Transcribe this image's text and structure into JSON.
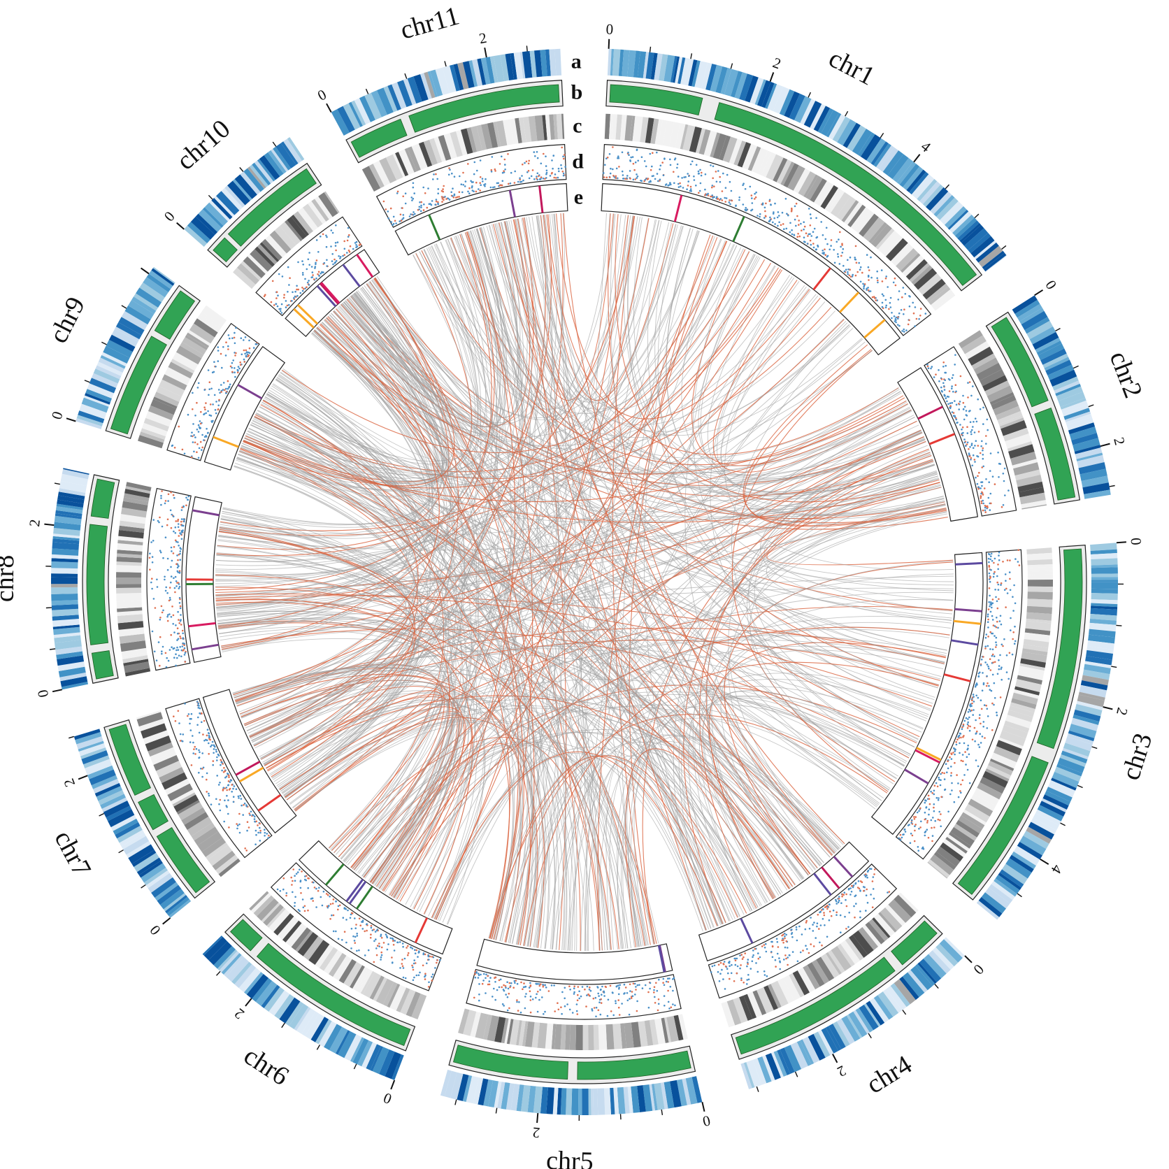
{
  "figure": {
    "track_letters": [
      "a",
      "b",
      "c",
      "d",
      "e"
    ],
    "chromosomes": [
      {
        "id": "chr1",
        "label": "chr1",
        "ticks": [
          "0",
          "2",
          "4"
        ],
        "size": 5.6
      },
      {
        "id": "chr2",
        "label": "chr2",
        "ticks": [
          "0",
          "2"
        ],
        "size": 2.6
      },
      {
        "id": "chr3",
        "label": "chr3",
        "ticks": [
          "0",
          "2",
          "4"
        ],
        "size": 4.9
      },
      {
        "id": "chr4",
        "label": "chr4",
        "ticks": [
          "0",
          "2"
        ],
        "size": 3.1
      },
      {
        "id": "chr5",
        "label": "chr5",
        "ticks": [
          "0",
          "2"
        ],
        "size": 3.2
      },
      {
        "id": "chr6",
        "label": "chr6",
        "ticks": [
          "0",
          "2"
        ],
        "size": 2.8
      },
      {
        "id": "chr7",
        "label": "chr7",
        "ticks": [
          "0",
          "2"
        ],
        "size": 2.5
      },
      {
        "id": "chr8",
        "label": "chr8",
        "ticks": [
          "0",
          "2"
        ],
        "size": 2.7
      },
      {
        "id": "chr9",
        "label": "chr9",
        "ticks": [
          "0"
        ],
        "size": 2.1
      },
      {
        "id": "chr10",
        "label": "chr10",
        "ticks": [
          "0"
        ],
        "size": 1.7
      },
      {
        "id": "chr11",
        "label": "chr11",
        "ticks": [
          "0",
          "2"
        ],
        "size": 2.9
      }
    ],
    "colors": {
      "heatmap_blues": [
        "#deebf7",
        "#c6dbef",
        "#9ecae1",
        "#6baed6",
        "#4292c6",
        "#2171b5",
        "#08519c"
      ],
      "heatmap_gap": "#a6a6a6",
      "green_track": "#31a354",
      "green_track_bg": "#ececec",
      "gray_bands": [
        "#f2f2f2",
        "#d9d9d9",
        "#bfbfbf",
        "#a6a6a6",
        "#808080",
        "#4d4d4d"
      ],
      "scatter_blue": "#4a90c8",
      "scatter_red": "#e07050",
      "marker_colors": [
        "#c2185b",
        "#7b3f8f",
        "#d81b60",
        "#5c4aa0",
        "#e53935",
        "#f9a825",
        "#2e7d32"
      ],
      "link_gray": "#9e9e9e",
      "link_red": "#d9603b"
    }
  }
}
